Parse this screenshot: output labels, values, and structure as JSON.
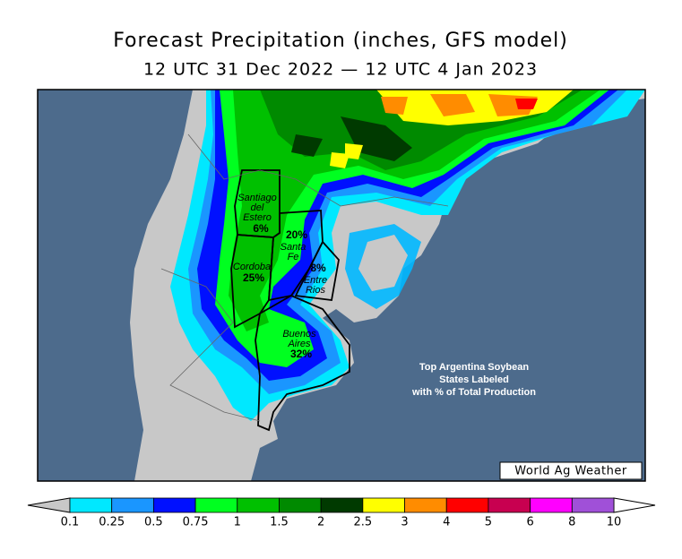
{
  "header": {
    "title": "Forecast Precipitation (inches, GFS model)",
    "subtitle": "12 UTC 31 Dec 2022 — 12 UTC 4 Jan 2023"
  },
  "states": [
    {
      "name": [
        "Santiago",
        "del",
        "Estero"
      ],
      "share": "6%"
    },
    {
      "name": [
        "Santa",
        "Fe"
      ],
      "share": "20%"
    },
    {
      "name": [
        "Cordoba"
      ],
      "share": "25%"
    },
    {
      "name": [
        "Entre",
        "Rios"
      ],
      "share": "8%"
    },
    {
      "name": [
        "Buenos",
        "Aires"
      ],
      "share": "32%"
    }
  ],
  "annotation": [
    "Top Argentina Soybean",
    "States Labeled",
    "with % of Total Production"
  ],
  "credit": "World Ag Weather",
  "colorbar": {
    "labels": [
      "0.1",
      "0.25",
      "0.5",
      "0.75",
      "1",
      "1.5",
      "2",
      "2.5",
      "3",
      "4",
      "5",
      "6",
      "8",
      "10"
    ],
    "colors": [
      "#00e8ff",
      "#1a96ff",
      "#0010ff",
      "#00ff20",
      "#00c000",
      "#008a00",
      "#003a00",
      "#ffff00",
      "#ff8c00",
      "#ff0000",
      "#c80050",
      "#ff00ff",
      "#a050d8"
    ]
  }
}
